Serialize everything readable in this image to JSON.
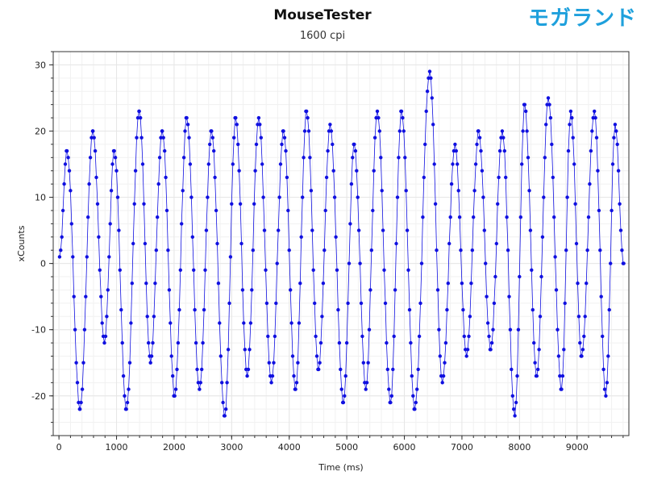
{
  "logo_text": "モガランド",
  "colors": {
    "series": "#1010e0",
    "grid": "#e6e6e6",
    "axis": "#333333",
    "logo": "#1ea0dc"
  },
  "chart_data": {
    "type": "scatter",
    "title": "MouseTester",
    "subtitle": "1600 cpi",
    "xlabel": "Time (ms)",
    "ylabel": "xCounts",
    "xlim": [
      -100,
      9900
    ],
    "ylim": [
      -26,
      32
    ],
    "xticks": [
      0,
      1000,
      2000,
      3000,
      4000,
      5000,
      6000,
      7000,
      8000,
      9000
    ],
    "yticks": [
      -20,
      -10,
      0,
      10,
      20,
      30
    ],
    "grid": true,
    "legend": "none",
    "series": [
      {
        "style": "points with connecting line",
        "color": "#1010e0",
        "peaks": [
          {
            "t": 140,
            "v": 17
          },
          {
            "t": 365,
            "v": -22
          },
          {
            "t": 590,
            "v": 20
          },
          {
            "t": 790,
            "v": -12
          },
          {
            "t": 960,
            "v": 17
          },
          {
            "t": 1170,
            "v": -22
          },
          {
            "t": 1395,
            "v": 23
          },
          {
            "t": 1590,
            "v": -15
          },
          {
            "t": 1795,
            "v": 20
          },
          {
            "t": 2010,
            "v": -20
          },
          {
            "t": 2220,
            "v": 22
          },
          {
            "t": 2440,
            "v": -19
          },
          {
            "t": 2650,
            "v": 20
          },
          {
            "t": 2880,
            "v": -23
          },
          {
            "t": 3070,
            "v": 22
          },
          {
            "t": 3270,
            "v": -17
          },
          {
            "t": 3470,
            "v": 22
          },
          {
            "t": 3690,
            "v": -18
          },
          {
            "t": 3900,
            "v": 20
          },
          {
            "t": 4110,
            "v": -19
          },
          {
            "t": 4300,
            "v": 23
          },
          {
            "t": 4510,
            "v": -16
          },
          {
            "t": 4710,
            "v": 21
          },
          {
            "t": 4940,
            "v": -21
          },
          {
            "t": 5130,
            "v": 18
          },
          {
            "t": 5330,
            "v": -19
          },
          {
            "t": 5530,
            "v": 23
          },
          {
            "t": 5760,
            "v": -21
          },
          {
            "t": 5950,
            "v": 23
          },
          {
            "t": 6180,
            "v": -22
          },
          {
            "t": 6440,
            "v": 29
          },
          {
            "t": 6660,
            "v": -18
          },
          {
            "t": 6880,
            "v": 18
          },
          {
            "t": 7080,
            "v": -14
          },
          {
            "t": 7290,
            "v": 20
          },
          {
            "t": 7500,
            "v": -13
          },
          {
            "t": 7700,
            "v": 20
          },
          {
            "t": 7920,
            "v": -23
          },
          {
            "t": 8090,
            "v": 24
          },
          {
            "t": 8300,
            "v": -17
          },
          {
            "t": 8500,
            "v": 25
          },
          {
            "t": 8730,
            "v": -19
          },
          {
            "t": 8890,
            "v": 23
          },
          {
            "t": 9080,
            "v": -14
          },
          {
            "t": 9300,
            "v": 23
          },
          {
            "t": 9500,
            "v": -20
          },
          {
            "t": 9660,
            "v": 21
          },
          {
            "t": 9810,
            "v": 0
          }
        ]
      }
    ]
  }
}
